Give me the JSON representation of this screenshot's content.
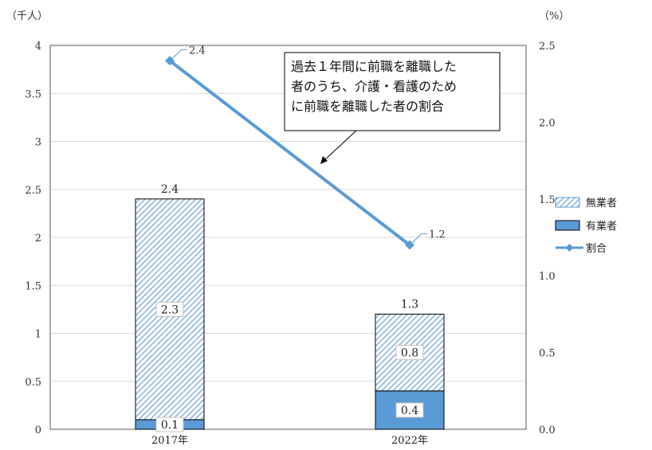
{
  "chart_data": {
    "type": "bar+line",
    "categories": [
      "2017年",
      "2022年"
    ],
    "y_left": {
      "unit": "（千人）",
      "ylim": [
        0,
        4
      ],
      "ticks": [
        "0",
        "0.5",
        "1",
        "1.5",
        "2",
        "2.5",
        "3",
        "3.5",
        "4"
      ]
    },
    "y_right": {
      "unit": "（%）",
      "ylim": [
        0,
        2.5
      ],
      "ticks": [
        "0.0",
        "0.5",
        "1.0",
        "1.5",
        "2.0",
        "2.5"
      ]
    },
    "series": [
      {
        "name": "有業者",
        "type": "stacked-bar",
        "axis": "left",
        "values": [
          0.1,
          0.4
        ],
        "labels": [
          "0.1",
          "0.4"
        ],
        "color": "#5b9bd5"
      },
      {
        "name": "無業者",
        "type": "stacked-bar",
        "axis": "left",
        "values": [
          2.3,
          0.8
        ],
        "labels": [
          "2.3",
          "0.8"
        ],
        "color": "#5b9bd5",
        "pattern": "diagonal-hatch"
      },
      {
        "name": "割合",
        "type": "line",
        "axis": "right",
        "values": [
          2.4,
          1.2
        ],
        "labels": [
          "2.4",
          "1.2"
        ],
        "color": "#5b9bd5",
        "marker": "diamond"
      }
    ],
    "totals": [
      "2.4",
      "1.3"
    ],
    "annotation": "過去１年間に前職を離職した者のうち、介護・看護のために前職を離職した者の割合",
    "annotation_lines": [
      "過去１年間に前職を離職した",
      "者のうち、介護・看護のため",
      "に前職を離職した者の割合"
    ],
    "legend": {
      "position": "right",
      "items": [
        "無業者",
        "有業者",
        "割合"
      ]
    },
    "grid": true
  }
}
